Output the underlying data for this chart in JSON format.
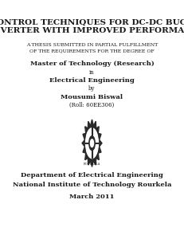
{
  "title_line1": "CONTROL TECHNIQUES FOR DC-DC BUCK",
  "title_line2": "CONVERTER WITH IMPROVED PERFORMANCE",
  "subtitle_line1": "A THESIS SUBMITTED IN PARTIAL FULFILLMENT",
  "subtitle_line2": "OF THE REQUIREMENTS FOR THE DEGREE OF",
  "degree": "Master of Technology (Research)",
  "in_text": "in",
  "department_degree": "Electrical Engineering",
  "by_text": "by",
  "author": "Mousumi Biswal",
  "roll": "(Roll: 60EE306)",
  "dept": "Department of Electrical Engineering",
  "institute": "National Institute of Technology Rourkela",
  "date": "March 2011",
  "bg_color": "#ffffff",
  "text_color": "#1a1a1a",
  "title_fontsize": 7.5,
  "subtitle_fontsize": 4.5,
  "body_fontsize": 6.0,
  "small_fontsize": 5.0
}
